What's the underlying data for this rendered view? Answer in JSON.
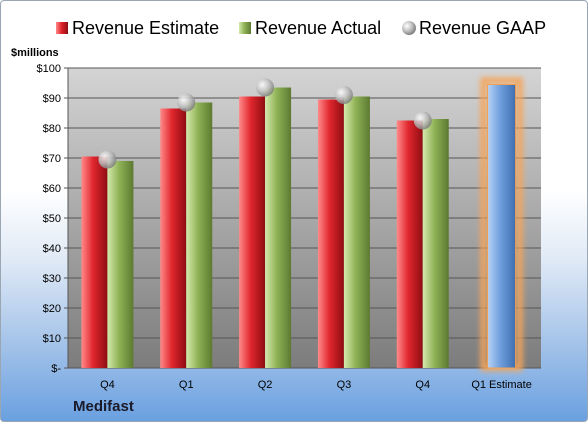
{
  "chart_data": {
    "type": "bar",
    "company": "Medifast",
    "y_unit_label": "$millions",
    "categories": [
      "Q4",
      "Q1",
      "Q2",
      "Q3",
      "Q4",
      "Q1 Estimate"
    ],
    "series": [
      {
        "name": "Revenue Estimate",
        "kind": "bar",
        "color": "#d2232a",
        "values": [
          70.5,
          86.5,
          90.5,
          89.5,
          82.5,
          null
        ]
      },
      {
        "name": "Revenue Actual",
        "kind": "bar",
        "color": "#8caf55",
        "values": [
          69.0,
          88.5,
          93.5,
          90.5,
          83.0,
          null
        ]
      },
      {
        "name": "Revenue GAAP",
        "kind": "marker",
        "color": "#a8a8a8",
        "values": [
          69.5,
          88.5,
          93.5,
          91.0,
          82.5,
          null
        ]
      },
      {
        "name": "Q1 Estimate",
        "kind": "highlight-bar",
        "color": "#6f9fdc",
        "glow": "#f5a55a",
        "values": [
          null,
          null,
          null,
          null,
          null,
          94.5
        ]
      }
    ],
    "ylim": [
      0,
      100
    ],
    "y_ticks": [
      "$-",
      "$10",
      "$20",
      "$30",
      "$40",
      "$50",
      "$60",
      "$70",
      "$80",
      "$90",
      "$100"
    ],
    "grid": true,
    "legend_position": "top",
    "plot_background": "#c8c8c8"
  }
}
